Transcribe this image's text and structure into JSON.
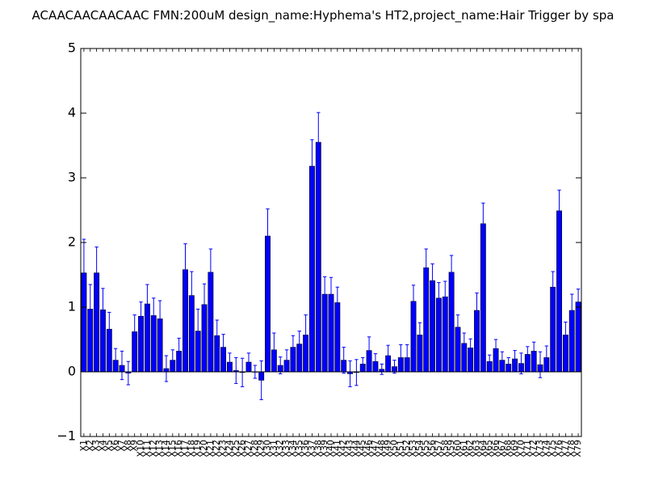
{
  "chart_data": {
    "type": "bar",
    "title": "ACAACAACAACAAC  FMN:200uM  design_name:Hyphema's HT2,project_name:Hair Trigger by spa",
    "xlabel": "",
    "ylabel": "",
    "ylim": [
      -1,
      5
    ],
    "yticks": [
      "−1",
      "0",
      "1",
      "2",
      "3",
      "4",
      "5"
    ],
    "ytick_values": [
      -1,
      0,
      1,
      2,
      3,
      4,
      5
    ],
    "grid": false,
    "bar_color": "#0000ff",
    "error_color": "#0000ff",
    "categories": [
      "X1",
      "X2",
      "X3",
      "X4",
      "X5",
      "X6",
      "X7",
      "X8",
      "X9",
      "X10",
      "X11",
      "X12",
      "X13",
      "X14",
      "X15",
      "X16",
      "X17",
      "X18",
      "X19",
      "X20",
      "X21",
      "X22",
      "X23",
      "X24",
      "X25",
      "X26",
      "X27",
      "X28",
      "X29",
      "X30",
      "X31",
      "X32",
      "X33",
      "X34",
      "X35",
      "X36",
      "X37",
      "X38",
      "X39",
      "X40",
      "X41",
      "X42",
      "X43",
      "X44",
      "X45",
      "X46",
      "X47",
      "X48",
      "X49",
      "X50",
      "X51",
      "X52",
      "X53",
      "X54",
      "X55",
      "X56",
      "X57",
      "X58",
      "X59",
      "X60",
      "X61",
      "X62",
      "X63",
      "X64",
      "X65",
      "X66",
      "X67",
      "X68",
      "X69",
      "X70",
      "X71",
      "X72",
      "X73",
      "X74",
      "X75",
      "X76",
      "X77",
      "X78",
      "X79"
    ],
    "values": [
      1.53,
      0.97,
      1.53,
      0.96,
      0.66,
      0.18,
      0.1,
      -0.02,
      0.62,
      0.86,
      1.05,
      0.87,
      0.82,
      0.05,
      0.18,
      0.32,
      1.58,
      1.18,
      0.63,
      1.04,
      1.54,
      0.56,
      0.38,
      0.15,
      0.02,
      -0.01,
      0.15,
      0.0,
      -0.13,
      2.1,
      0.34,
      0.1,
      0.18,
      0.38,
      0.43,
      0.57,
      3.18,
      3.55,
      1.2,
      1.2,
      1.07,
      0.18,
      -0.03,
      -0.01,
      0.12,
      0.33,
      0.16,
      0.04,
      0.25,
      0.08,
      0.22,
      0.22,
      1.09,
      0.57,
      1.61,
      1.41,
      1.14,
      1.16,
      1.54,
      0.69,
      0.44,
      0.37,
      0.95,
      2.29,
      0.16,
      0.36,
      0.18,
      0.12,
      0.2,
      0.13,
      0.27,
      0.32,
      0.11,
      0.22,
      1.31,
      2.49,
      0.57,
      0.95,
      1.08
    ],
    "errors": [
      0.52,
      0.38,
      0.4,
      0.33,
      0.26,
      0.18,
      0.22,
      0.18,
      0.26,
      0.22,
      0.3,
      0.27,
      0.28,
      0.2,
      0.16,
      0.2,
      0.4,
      0.37,
      0.34,
      0.32,
      0.36,
      0.24,
      0.2,
      0.14,
      0.2,
      0.22,
      0.14,
      0.1,
      0.3,
      0.42,
      0.26,
      0.13,
      0.16,
      0.18,
      0.2,
      0.31,
      0.41,
      0.46,
      0.27,
      0.26,
      0.24,
      0.2,
      0.2,
      0.2,
      0.1,
      0.21,
      0.12,
      0.08,
      0.16,
      0.1,
      0.2,
      0.2,
      0.25,
      0.19,
      0.29,
      0.26,
      0.24,
      0.24,
      0.26,
      0.19,
      0.16,
      0.14,
      0.27,
      0.32,
      0.1,
      0.14,
      0.13,
      0.1,
      0.13,
      0.16,
      0.12,
      0.14,
      0.2,
      0.18,
      0.24,
      0.32,
      0.2,
      0.25,
      0.2
    ]
  }
}
